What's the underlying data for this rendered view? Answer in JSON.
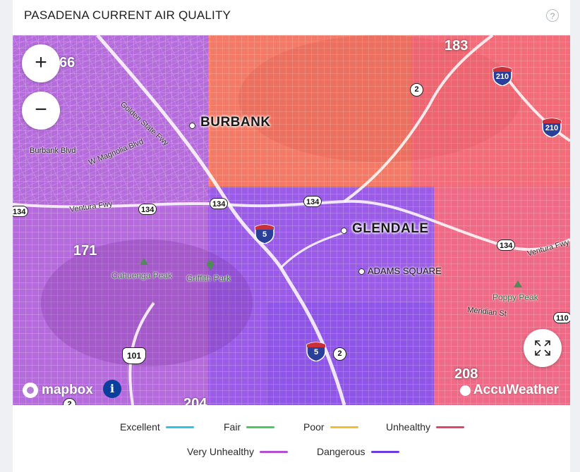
{
  "header": {
    "title": "PASADENA CURRENT AIR QUALITY",
    "help_label": "?"
  },
  "map": {
    "zoom_in_label": "+",
    "zoom_out_label": "−",
    "cities": [
      "BURBANK",
      "GLENDALE"
    ],
    "neighborhoods": [
      "ADAMS SQUARE"
    ],
    "streets": [
      "Golden State Fwy",
      "Burbank Blvd",
      "W Magnolia Blvd",
      "Ventura Fwy",
      "Ventura Fwy",
      "Meridian St"
    ],
    "parks": [
      "Cahuenga Peak",
      "Griffith Park",
      "Poppy Peak"
    ],
    "route_shields": [
      "134",
      "134",
      "134",
      "134",
      "134",
      "110"
    ],
    "us_shield": "101",
    "state_routes": [
      "2",
      "2",
      "2"
    ],
    "interstates": [
      "210",
      "210",
      "5",
      "5"
    ],
    "big_numbers": [
      "183",
      "171",
      "208",
      "66",
      "204"
    ],
    "attribution": {
      "mapbox": "mapbox",
      "info": "i",
      "accuweather": "AccuWeather"
    },
    "colors": {
      "very_unhealthy": "#b56bdb",
      "dangerous": "#8f55e6",
      "unhealthy": "#ee6a86",
      "unhealthy_orange": "#f37a66"
    }
  },
  "legend": {
    "items": [
      {
        "label": "Excellent",
        "color": "#2bc5e6"
      },
      {
        "label": "Fair",
        "color": "#4cc95e"
      },
      {
        "label": "Poor",
        "color": "#f0bf2a"
      },
      {
        "label": "Unhealthy",
        "color": "#e2426c"
      },
      {
        "label": "Very Unhealthy",
        "color": "#b44fd4"
      },
      {
        "label": "Dangerous",
        "color": "#6a3de0"
      }
    ]
  }
}
